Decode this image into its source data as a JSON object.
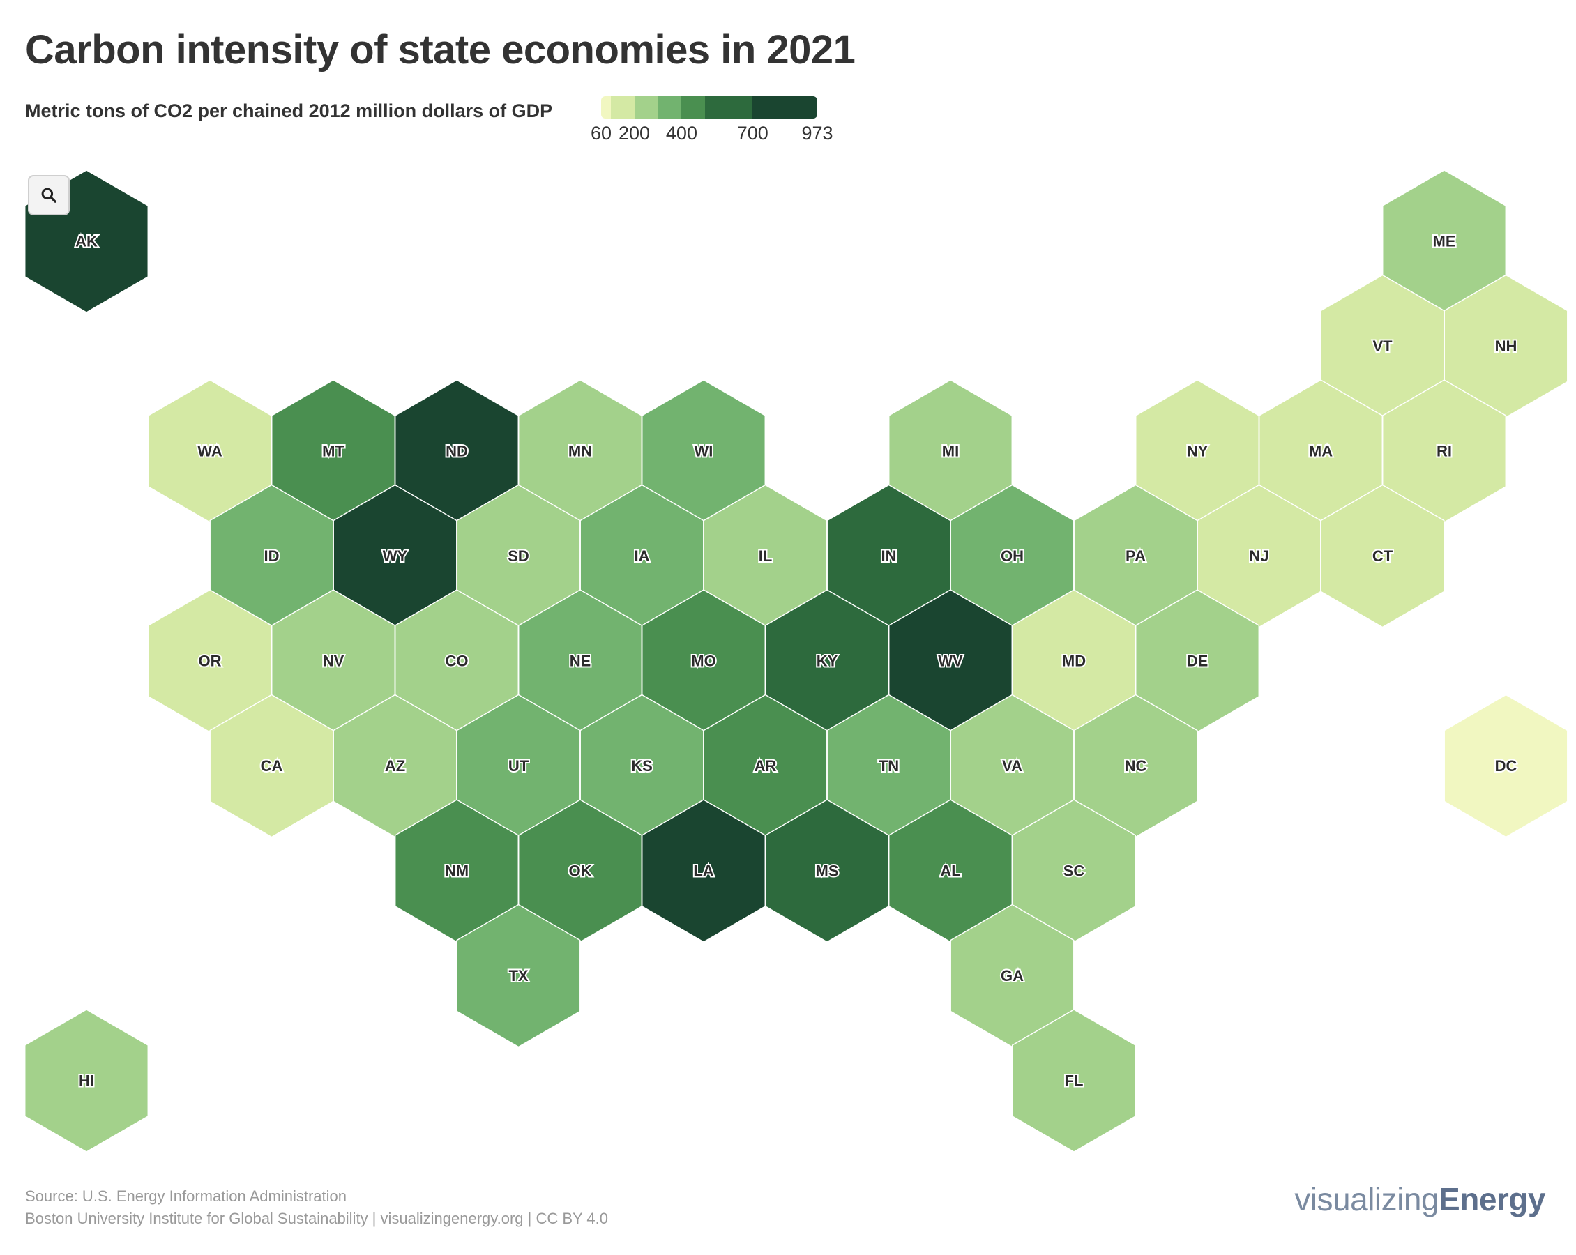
{
  "title": "Carbon intensity of state economies in 2021",
  "subtitle": "Metric tons of CO2 per chained 2012 million dollars of GDP",
  "legend": {
    "ticks": [
      {
        "label": "60",
        "value": 60
      },
      {
        "label": "200",
        "value": 200
      },
      {
        "label": "400",
        "value": 400
      },
      {
        "label": "700",
        "value": 700
      },
      {
        "label": "973",
        "value": 973
      }
    ],
    "bins": [
      {
        "from": 60,
        "to": 100,
        "color": "#f1f7c1"
      },
      {
        "from": 100,
        "to": 200,
        "color": "#d4e9a4"
      },
      {
        "from": 200,
        "to": 300,
        "color": "#a3d18b"
      },
      {
        "from": 300,
        "to": 400,
        "color": "#72b36f"
      },
      {
        "from": 400,
        "to": 500,
        "color": "#4a8f50"
      },
      {
        "from": 500,
        "to": 700,
        "color": "#2d6a3d"
      },
      {
        "from": 700,
        "to": 973,
        "color": "#1a4530"
      }
    ]
  },
  "zoom": {
    "icon": "search-icon"
  },
  "states": [
    {
      "code": "AK",
      "col": 0,
      "row": 0,
      "color": "#1a4530"
    },
    {
      "code": "ME",
      "col": 11,
      "row": 0,
      "color": "#a3d18b"
    },
    {
      "code": "VT",
      "col": 10,
      "row": 1,
      "color": "#d4e9a4"
    },
    {
      "code": "NH",
      "col": 11,
      "row": 1,
      "color": "#d4e9a4"
    },
    {
      "code": "WA",
      "col": 1,
      "row": 2,
      "color": "#d4e9a4"
    },
    {
      "code": "MT",
      "col": 2,
      "row": 2,
      "color": "#4a8f50"
    },
    {
      "code": "ND",
      "col": 3,
      "row": 2,
      "color": "#1a4530"
    },
    {
      "code": "MN",
      "col": 4,
      "row": 2,
      "color": "#a3d18b"
    },
    {
      "code": "WI",
      "col": 5,
      "row": 2,
      "color": "#72b36f"
    },
    {
      "code": "MI",
      "col": 7,
      "row": 2,
      "color": "#a3d18b"
    },
    {
      "code": "NY",
      "col": 9,
      "row": 2,
      "color": "#d4e9a4"
    },
    {
      "code": "MA",
      "col": 10,
      "row": 2,
      "color": "#d4e9a4"
    },
    {
      "code": "RI",
      "col": 11,
      "row": 2,
      "color": "#d4e9a4"
    },
    {
      "code": "ID",
      "col": 1,
      "row": 3,
      "color": "#72b36f"
    },
    {
      "code": "WY",
      "col": 2,
      "row": 3,
      "color": "#1a4530"
    },
    {
      "code": "SD",
      "col": 3,
      "row": 3,
      "color": "#a3d18b"
    },
    {
      "code": "IA",
      "col": 4,
      "row": 3,
      "color": "#72b36f"
    },
    {
      "code": "IL",
      "col": 5,
      "row": 3,
      "color": "#a3d18b"
    },
    {
      "code": "IN",
      "col": 6,
      "row": 3,
      "color": "#2d6a3d"
    },
    {
      "code": "OH",
      "col": 7,
      "row": 3,
      "color": "#72b36f"
    },
    {
      "code": "PA",
      "col": 8,
      "row": 3,
      "color": "#a3d18b"
    },
    {
      "code": "NJ",
      "col": 9,
      "row": 3,
      "color": "#d4e9a4"
    },
    {
      "code": "CT",
      "col": 10,
      "row": 3,
      "color": "#d4e9a4"
    },
    {
      "code": "OR",
      "col": 1,
      "row": 4,
      "color": "#d4e9a4"
    },
    {
      "code": "NV",
      "col": 2,
      "row": 4,
      "color": "#a3d18b"
    },
    {
      "code": "CO",
      "col": 3,
      "row": 4,
      "color": "#a3d18b"
    },
    {
      "code": "NE",
      "col": 4,
      "row": 4,
      "color": "#72b36f"
    },
    {
      "code": "MO",
      "col": 5,
      "row": 4,
      "color": "#4a8f50"
    },
    {
      "code": "KY",
      "col": 6,
      "row": 4,
      "color": "#2d6a3d"
    },
    {
      "code": "WV",
      "col": 7,
      "row": 4,
      "color": "#1a4530"
    },
    {
      "code": "MD",
      "col": 8,
      "row": 4,
      "color": "#d4e9a4"
    },
    {
      "code": "DE",
      "col": 9,
      "row": 4,
      "color": "#a3d18b"
    },
    {
      "code": "CA",
      "col": 1,
      "row": 5,
      "color": "#d4e9a4"
    },
    {
      "code": "AZ",
      "col": 2,
      "row": 5,
      "color": "#a3d18b"
    },
    {
      "code": "UT",
      "col": 3,
      "row": 5,
      "color": "#72b36f"
    },
    {
      "code": "KS",
      "col": 4,
      "row": 5,
      "color": "#72b36f"
    },
    {
      "code": "AR",
      "col": 5,
      "row": 5,
      "color": "#4a8f50"
    },
    {
      "code": "TN",
      "col": 6,
      "row": 5,
      "color": "#72b36f"
    },
    {
      "code": "VA",
      "col": 7,
      "row": 5,
      "color": "#a3d18b"
    },
    {
      "code": "NC",
      "col": 8,
      "row": 5,
      "color": "#a3d18b"
    },
    {
      "code": "DC",
      "col": 11,
      "row": 5,
      "color": "#f1f7c1"
    },
    {
      "code": "NM",
      "col": 3,
      "row": 6,
      "color": "#4a8f50"
    },
    {
      "code": "OK",
      "col": 4,
      "row": 6,
      "color": "#4a8f50"
    },
    {
      "code": "LA",
      "col": 5,
      "row": 6,
      "color": "#1a4530"
    },
    {
      "code": "MS",
      "col": 6,
      "row": 6,
      "color": "#2d6a3d"
    },
    {
      "code": "AL",
      "col": 7,
      "row": 6,
      "color": "#4a8f50"
    },
    {
      "code": "SC",
      "col": 8,
      "row": 6,
      "color": "#a3d18b"
    },
    {
      "code": "TX",
      "col": 3,
      "row": 7,
      "color": "#72b36f"
    },
    {
      "code": "GA",
      "col": 7,
      "row": 7,
      "color": "#a3d18b"
    },
    {
      "code": "HI",
      "col": 0,
      "row": 8,
      "color": "#a3d18b"
    },
    {
      "code": "FL",
      "col": 8,
      "row": 8,
      "color": "#a3d18b"
    }
  ],
  "footer": {
    "source": "Source: U.S. Energy Information Administration",
    "credit": "Boston University Institute for Global Sustainability | visualizingenergy.org | CC BY 4.0"
  },
  "brand": {
    "part1": "visualizing",
    "part2": "Energy"
  }
}
